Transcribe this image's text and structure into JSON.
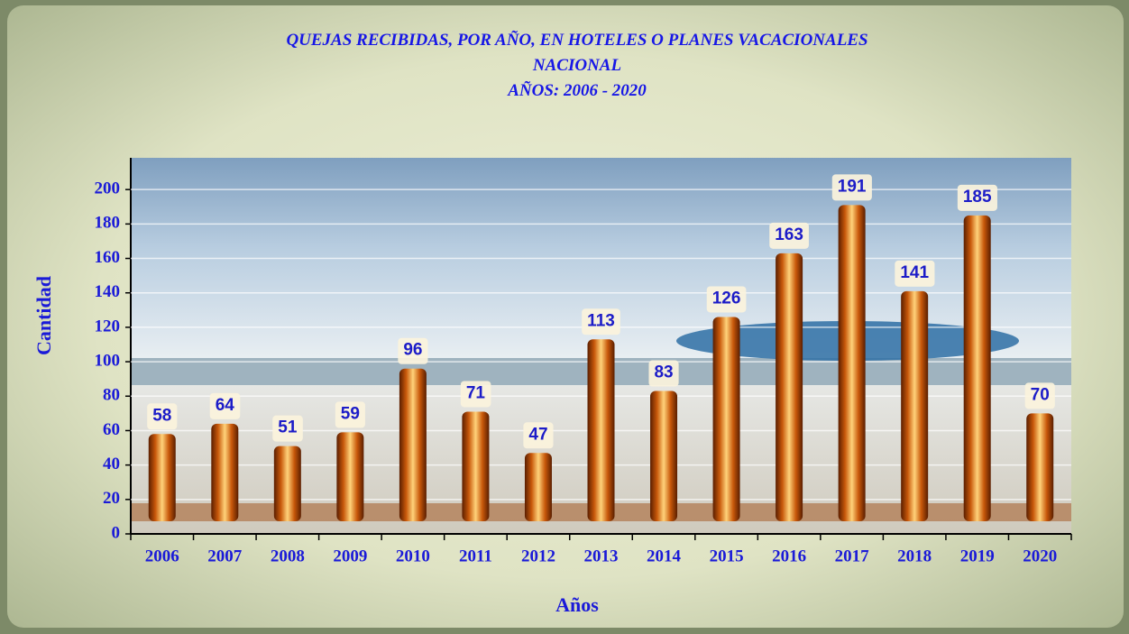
{
  "chart_data": {
    "type": "bar",
    "title": "QUEJAS RECIBIDAS, POR AÑO, EN HOTELES O PLANES VACACIONALES",
    "subtitle": [
      "NACIONAL",
      "AÑOS:  2006 - 2020"
    ],
    "xlabel": "Años",
    "ylabel": "Cantidad",
    "categories": [
      "2006",
      "2007",
      "2008",
      "2009",
      "2010",
      "2011",
      "2012",
      "2013",
      "2014",
      "2015",
      "2016",
      "2017",
      "2018",
      "2019",
      "2020"
    ],
    "values": [
      58,
      64,
      51,
      59,
      96,
      71,
      47,
      113,
      83,
      126,
      163,
      191,
      141,
      185,
      70
    ],
    "color": "#e07a10",
    "ylim": [
      0,
      220
    ],
    "yticks": [
      0,
      20,
      40,
      60,
      80,
      100,
      120,
      140,
      160,
      180,
      200
    ],
    "grid": true
  }
}
